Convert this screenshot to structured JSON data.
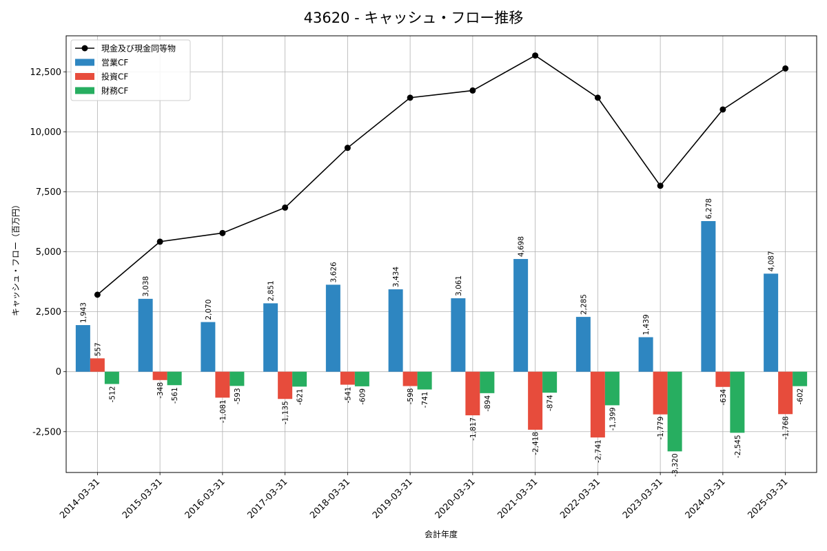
{
  "chart_data": {
    "type": "bar",
    "title": "43620 - キャッシュ・フロー推移",
    "xlabel": "会計年度",
    "ylabel": "キャッシュ・フロー（百万円）",
    "ylim": [
      -4200,
      14000
    ],
    "yticks": [
      -2500,
      0,
      2500,
      5000,
      7500,
      10000,
      12500
    ],
    "ytick_labels": [
      "-2,500",
      "0",
      "2,500",
      "5,000",
      "7,500",
      "10,000",
      "12,500"
    ],
    "grid": true,
    "legend_position": "top-left",
    "categories": [
      "2014-03-31",
      "2015-03-31",
      "2016-03-31",
      "2017-03-31",
      "2018-03-31",
      "2019-03-31",
      "2020-03-31",
      "2021-03-31",
      "2022-03-31",
      "2023-03-31",
      "2024-03-31",
      "2025-03-31"
    ],
    "series": [
      {
        "name": "営業CF",
        "kind": "bar",
        "color": "#2e86c1",
        "values": [
          1943,
          3038,
          2070,
          2851,
          3626,
          3434,
          3061,
          4698,
          2285,
          1439,
          6278,
          4087
        ],
        "labels": [
          "1,943",
          "3,038",
          "2,070",
          "2,851",
          "3,626",
          "3,434",
          "3,061",
          "4,698",
          "2,285",
          "1,439",
          "6,278",
          "4,087"
        ]
      },
      {
        "name": "投資CF",
        "kind": "bar",
        "color": "#e74c3c",
        "values": [
          557,
          -348,
          -1081,
          -1135,
          -541,
          -598,
          -1817,
          -2418,
          -2741,
          -1779,
          -634,
          -1768
        ],
        "labels": [
          "557",
          "-348",
          "-1,081",
          "-1,135",
          "-541",
          "-598",
          "-1,817",
          "-2,418",
          "-2,741",
          "-1,779",
          "-634",
          "-1,768"
        ]
      },
      {
        "name": "財務CF",
        "kind": "bar",
        "color": "#27ae60",
        "values": [
          -512,
          -561,
          -593,
          -621,
          -609,
          -741,
          -894,
          -874,
          -1399,
          -3320,
          -2545,
          -602
        ],
        "labels": [
          "-512",
          "-561",
          "-593",
          "-621",
          "-609",
          "-741",
          "-894",
          "-874",
          "-1,399",
          "-3,320",
          "-2,545",
          "-602"
        ]
      },
      {
        "name": "現金及び現金同等物",
        "kind": "line",
        "color": "#000000",
        "values": [
          3210,
          5420,
          5780,
          6840,
          9330,
          11420,
          11720,
          13180,
          11420,
          7750,
          10930,
          12640
        ]
      }
    ]
  }
}
